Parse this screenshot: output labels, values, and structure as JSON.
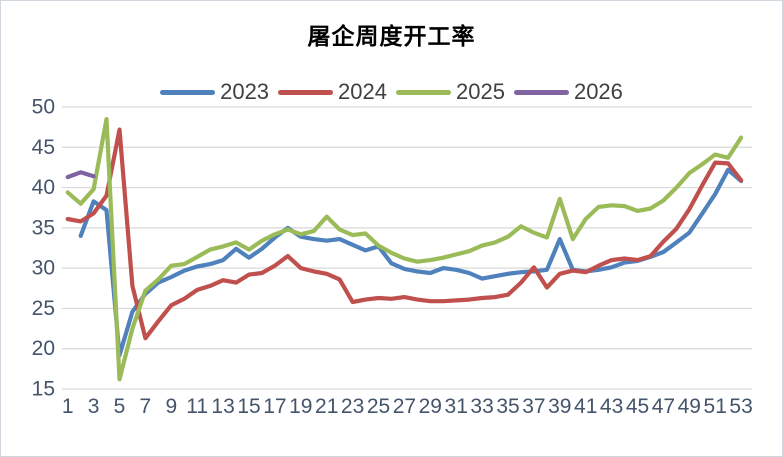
{
  "window": {
    "title": "屠企周度开工率"
  },
  "chart_data": {
    "type": "line",
    "title": "屠企周度开工率",
    "xlabel": "",
    "ylabel": "",
    "x_unit": "week-of-year",
    "x_start_week": 1,
    "x_ticks": [
      1,
      3,
      5,
      7,
      9,
      11,
      13,
      15,
      17,
      19,
      21,
      23,
      25,
      27,
      29,
      31,
      33,
      35,
      37,
      39,
      41,
      43,
      45,
      47,
      49,
      51,
      53
    ],
    "y_ticks": [
      15,
      20,
      25,
      30,
      35,
      40,
      45,
      50
    ],
    "ylim": [
      15,
      50
    ],
    "xlim": [
      1,
      53
    ],
    "grid": "horizontal-only",
    "legend_position": "top-center",
    "colors": {
      "grid": "#D9D9D9",
      "axis_text": "#44546A",
      "legend_text": "#404040",
      "title_text": "#000000"
    },
    "series": [
      {
        "name": "2023",
        "color": "#4F81BD",
        "values": [
          null,
          34.0,
          38.3,
          37.2,
          19.2,
          24.6,
          26.8,
          28.2,
          28.9,
          29.7,
          30.2,
          30.5,
          31.0,
          32.4,
          31.3,
          32.4,
          33.8,
          35.0,
          33.9,
          33.6,
          33.4,
          33.6,
          32.9,
          32.2,
          32.7,
          30.6,
          29.9,
          29.6,
          29.4,
          30.0,
          29.8,
          29.4,
          28.7,
          29.0,
          29.3,
          29.5,
          29.6,
          29.8,
          33.6,
          29.8,
          29.6,
          29.8,
          30.1,
          30.7,
          30.9,
          31.4,
          32.0,
          33.2,
          34.4,
          36.8,
          39.2,
          42.2,
          40.8
        ]
      },
      {
        "name": "2024",
        "color": "#C0504D",
        "values": [
          36.1,
          35.8,
          36.8,
          39.0,
          47.2,
          27.8,
          21.3,
          23.4,
          25.4,
          26.2,
          27.3,
          27.8,
          28.5,
          28.2,
          29.2,
          29.4,
          30.3,
          31.5,
          30.0,
          29.6,
          29.3,
          28.6,
          25.8,
          26.1,
          26.3,
          26.2,
          26.4,
          26.1,
          25.9,
          25.9,
          26.0,
          26.1,
          26.3,
          26.4,
          26.7,
          28.2,
          30.1,
          27.6,
          29.3,
          29.7,
          29.5,
          30.3,
          31.0,
          31.2,
          31.0,
          31.5,
          33.3,
          34.9,
          37.3,
          40.3,
          43.1,
          43.0,
          40.9
        ]
      },
      {
        "name": "2025",
        "color": "#9BBB59",
        "values": [
          39.4,
          38.0,
          39.8,
          48.5,
          16.2,
          22.5,
          27.2,
          28.6,
          30.3,
          30.5,
          31.4,
          32.3,
          32.7,
          33.2,
          32.3,
          33.4,
          34.2,
          34.8,
          34.2,
          34.6,
          36.4,
          34.8,
          34.1,
          34.3,
          32.8,
          31.9,
          31.2,
          30.8,
          31.0,
          31.3,
          31.7,
          32.1,
          32.8,
          33.2,
          33.9,
          35.2,
          34.4,
          33.8,
          38.6,
          33.6,
          36.1,
          37.6,
          37.8,
          37.7,
          37.1,
          37.4,
          38.4,
          40.0,
          41.8,
          42.9,
          44.1,
          43.7,
          46.2
        ]
      },
      {
        "name": "2026",
        "color": "#8064A2",
        "values": [
          41.3,
          41.9,
          41.4
        ]
      }
    ]
  }
}
